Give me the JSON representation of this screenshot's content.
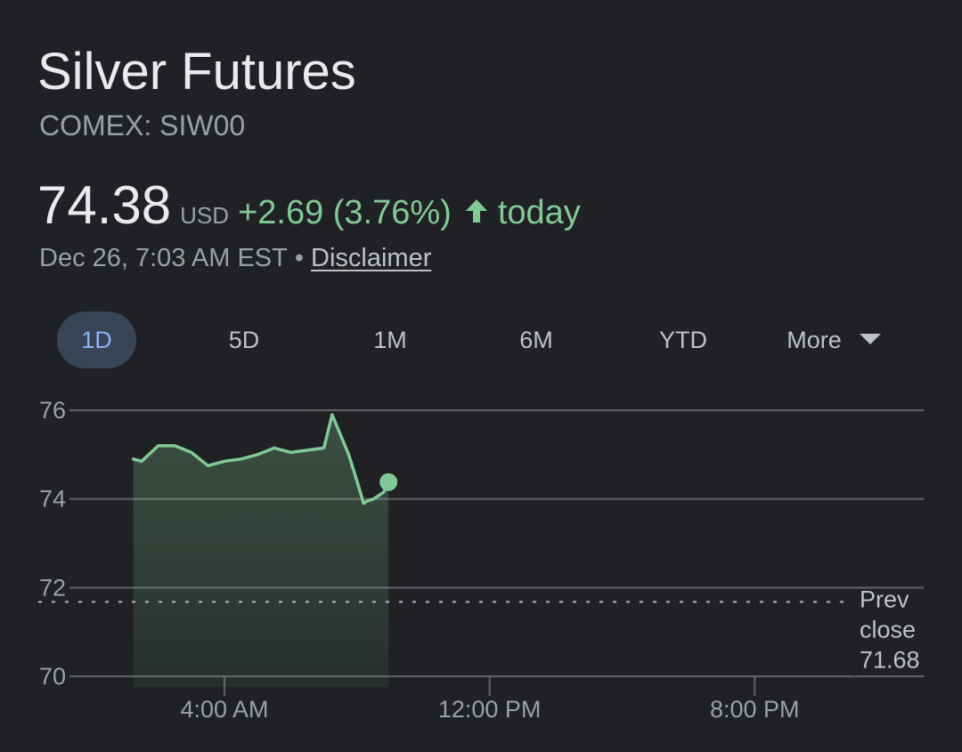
{
  "header": {
    "title": "Silver Futures",
    "ticker": "COMEX: SIW00"
  },
  "quote": {
    "price": "74.38",
    "currency": "USD",
    "change": "+2.69 (3.76%)",
    "direction_icon": "arrow-up-icon",
    "period": "today",
    "timestamp": "Dec 26, 7:03 AM EST",
    "separator": "•",
    "disclaimer": "Disclaimer"
  },
  "tabs": [
    {
      "label": "1D",
      "active": true
    },
    {
      "label": "5D",
      "active": false
    },
    {
      "label": "1M",
      "active": false
    },
    {
      "label": "6M",
      "active": false
    },
    {
      "label": "YTD",
      "active": false
    },
    {
      "label": "More",
      "active": false
    }
  ],
  "colors": {
    "background": "#202124",
    "positive": "#81c995",
    "accent": "#8ab4f8",
    "active_tab_bg": "#394457",
    "gridline": "#5f6368",
    "text_secondary": "#9aa0a6"
  },
  "chart_data": {
    "type": "area",
    "title": "",
    "xlabel": "",
    "ylabel": "",
    "ylim": [
      70,
      76
    ],
    "y_ticks": [
      "76",
      "74",
      "72",
      "70"
    ],
    "x_ticks": [
      "4:00 AM",
      "12:00 PM",
      "8:00 PM"
    ],
    "x_unit": "hours since 6:00 PM EST",
    "x_tick_values": [
      10,
      18,
      26
    ],
    "xlim": [
      5.7,
      31.1
    ],
    "grid": true,
    "prev_close": {
      "label_line1": "Prev",
      "label_line2": "close",
      "value": "71.68"
    },
    "series": [
      {
        "x": [
          7.25,
          7.5,
          8,
          8.5,
          9,
          9.5,
          10,
          10.5,
          11,
          11.5,
          12,
          12.5,
          13,
          13.25,
          13.5,
          13.75,
          14,
          14.2,
          14.3,
          14.5,
          14.7,
          14.8,
          14.95
        ],
        "y": [
          74.9,
          74.85,
          75.2,
          75.2,
          75.05,
          74.75,
          74.85,
          74.9,
          75.0,
          75.15,
          75.05,
          75.1,
          75.15,
          75.9,
          75.45,
          75.0,
          74.4,
          73.9,
          73.95,
          74.0,
          74.1,
          74.15,
          74.38
        ]
      }
    ],
    "last_point": {
      "x": 14.95,
      "y": 74.38
    }
  }
}
